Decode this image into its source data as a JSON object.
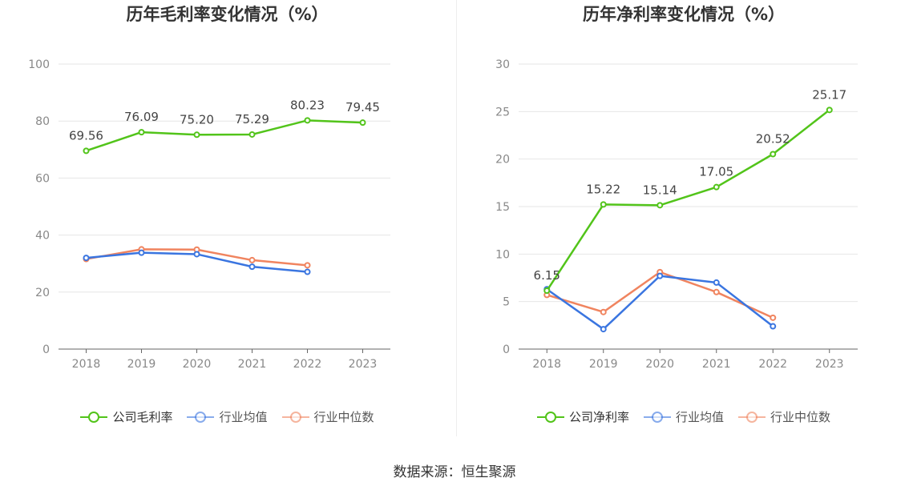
{
  "chart_data": [
    {
      "type": "line",
      "title": "历年毛利率变化情况（%）",
      "categories": [
        "2018",
        "2019",
        "2020",
        "2021",
        "2022",
        "2023"
      ],
      "ylim": [
        0,
        100
      ],
      "yticks": [
        "0",
        "20",
        "40",
        "60",
        "80",
        "100"
      ],
      "ytick_values": [
        0,
        20,
        40,
        60,
        80,
        100
      ],
      "series": [
        {
          "name": "公司毛利率",
          "color": "#52c41a",
          "values": [
            69.56,
            76.09,
            75.2,
            75.29,
            80.23,
            79.45
          ],
          "labels": [
            "69.56",
            "76.09",
            "75.20",
            "75.29",
            "80.23",
            "79.45"
          ]
        },
        {
          "name": "行业均值",
          "color": "#3a75e0",
          "values": [
            32.0,
            33.8,
            33.3,
            28.9,
            27.1,
            null
          ]
        },
        {
          "name": "行业中位数",
          "color": "#f0845f",
          "values": [
            31.6,
            35.0,
            34.9,
            31.2,
            29.4,
            null
          ]
        }
      ],
      "legend_position": "bottom"
    },
    {
      "type": "line",
      "title": "历年净利率变化情况（%）",
      "categories": [
        "2018",
        "2019",
        "2020",
        "2021",
        "2022",
        "2023"
      ],
      "ylim": [
        0,
        30
      ],
      "yticks": [
        "0",
        "5",
        "10",
        "15",
        "20",
        "25",
        "30"
      ],
      "ytick_values": [
        0,
        5,
        10,
        15,
        20,
        25,
        30
      ],
      "series": [
        {
          "name": "公司净利率",
          "color": "#52c41a",
          "values": [
            6.15,
            15.22,
            15.14,
            17.05,
            20.52,
            25.17
          ],
          "labels": [
            "6.15",
            "15.22",
            "15.14",
            "17.05",
            "20.52",
            "25.17"
          ]
        },
        {
          "name": "行业均值",
          "color": "#3a75e0",
          "values": [
            6.3,
            2.1,
            7.7,
            7.0,
            2.4,
            null
          ]
        },
        {
          "name": "行业中位数",
          "color": "#f0845f",
          "values": [
            5.7,
            3.9,
            8.1,
            6.0,
            3.3,
            null
          ]
        }
      ],
      "legend_position": "bottom"
    }
  ],
  "source": "数据来源：恒生聚源"
}
